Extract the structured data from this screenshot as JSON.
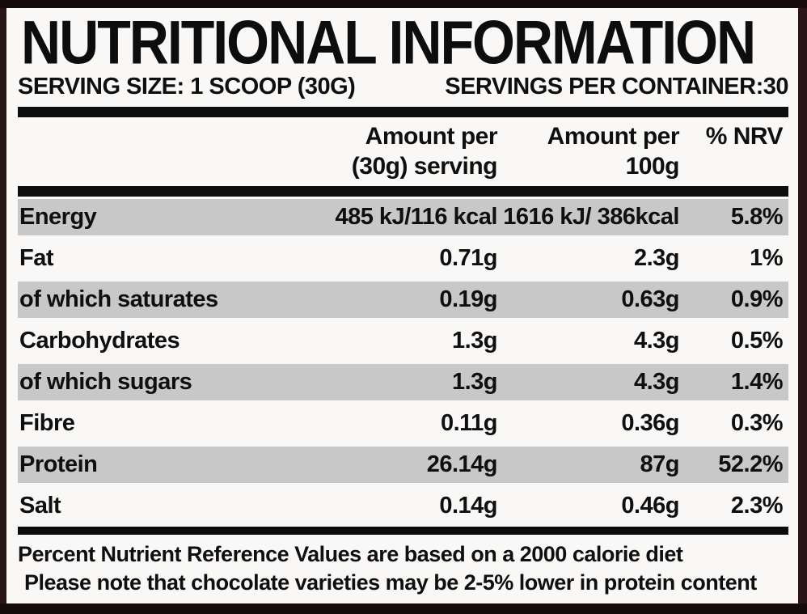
{
  "label": {
    "title": "NUTRITIONAL INFORMATION",
    "serving_size": "SERVING SIZE: 1 SCOOP (30G)",
    "servings_per_container": "SERVINGS PER CONTAINER:30",
    "columns": {
      "per_serving_line1": "Amount per",
      "per_serving_line2": "(30g) serving",
      "per_100g_line1": "Amount per",
      "per_100g_line2": "100g",
      "nrv": "% NRV"
    },
    "rows": [
      {
        "nutrient": "Energy",
        "per_serving": "485 kJ/116 kcal",
        "per_100g": "1616 kJ/ 386kcal",
        "nrv": "5.8%",
        "shaded": true
      },
      {
        "nutrient": "Fat",
        "per_serving": "0.71g",
        "per_100g": "2.3g",
        "nrv": "1%",
        "shaded": false
      },
      {
        "nutrient": "of which saturates",
        "per_serving": "0.19g",
        "per_100g": "0.63g",
        "nrv": "0.9%",
        "shaded": true
      },
      {
        "nutrient": "Carbohydrates",
        "per_serving": "1.3g",
        "per_100g": "4.3g",
        "nrv": "0.5%",
        "shaded": false
      },
      {
        "nutrient": "of which sugars",
        "per_serving": "1.3g",
        "per_100g": "4.3g",
        "nrv": "1.4%",
        "shaded": true
      },
      {
        "nutrient": "Fibre",
        "per_serving": "0.11g",
        "per_100g": "0.36g",
        "nrv": "0.3%",
        "shaded": false
      },
      {
        "nutrient": "Protein",
        "per_serving": "26.14g",
        "per_100g": "87g",
        "nrv": "52.2%",
        "shaded": true
      },
      {
        "nutrient": "Salt",
        "per_serving": "0.14g",
        "per_100g": "0.46g",
        "nrv": "2.3%",
        "shaded": false
      }
    ],
    "footnotes": [
      "Percent Nutrient Reference Values are based on a 2000 calorie diet",
      "Please note that chocolate varieties may be 2-5% lower in protein content"
    ],
    "colors": {
      "frame": "#2b1518",
      "frame_dark": "#170a0c",
      "panel": "#f9f8f6",
      "bar": "#0d0d0d",
      "shaded_row": "#c8c8c8",
      "text": "#0f0f0f"
    }
  }
}
